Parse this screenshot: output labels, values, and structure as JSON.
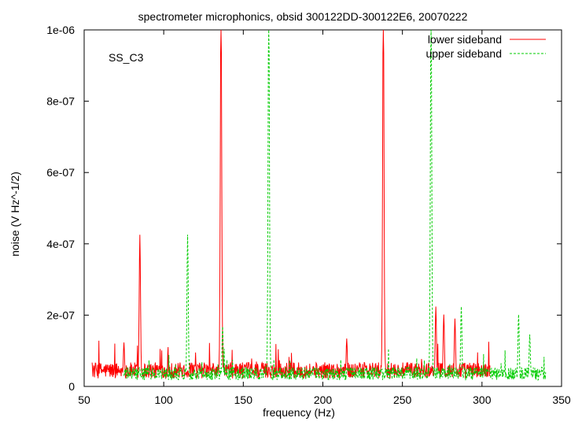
{
  "chart_data": {
    "type": "line",
    "title": "spectrometer microphonics, obsid 300122DD-300122E6, 20070222",
    "annotation": "SS_C3",
    "xlabel": "frequency (Hz)",
    "ylabel": "noise (V Hz^-1/2)",
    "xlim": [
      50,
      350
    ],
    "ylim": [
      0,
      1e-06
    ],
    "x_ticks": [
      50,
      100,
      150,
      200,
      250,
      300,
      350
    ],
    "x_tick_labels": [
      "50",
      "100",
      "150",
      "200",
      "250",
      "300",
      "350"
    ],
    "y_ticks": [
      0,
      2e-07,
      4e-07,
      6e-07,
      8e-07,
      1e-06
    ],
    "y_tick_labels": [
      "0",
      "2e-07",
      "4e-07",
      "6e-07",
      "8e-07",
      "1e-06"
    ],
    "grid": false,
    "legend_position": "top-right",
    "series": [
      {
        "name": "lower sideband",
        "color": "#ff0000",
        "style": "solid",
        "x_range": [
          55,
          305
        ],
        "baseline": 5e-08,
        "peaks": [
          {
            "x": 75,
            "y": 1.1e-07
          },
          {
            "x": 85,
            "y": 3.8e-07
          },
          {
            "x": 136,
            "y": 1e-06
          },
          {
            "x": 215,
            "y": 1.2e-07
          },
          {
            "x": 238,
            "y": 1e-06
          },
          {
            "x": 271,
            "y": 2e-07
          },
          {
            "x": 276,
            "y": 1.8e-07
          },
          {
            "x": 283,
            "y": 1.7e-07
          }
        ]
      },
      {
        "name": "upper sideband",
        "color": "#00cc00",
        "style": "dashed",
        "x_range": [
          75,
          340
        ],
        "baseline": 4e-08,
        "peaks": [
          {
            "x": 115,
            "y": 3.8e-07
          },
          {
            "x": 137,
            "y": 1.5e-07
          },
          {
            "x": 166,
            "y": 1e-06
          },
          {
            "x": 268,
            "y": 1e-06
          },
          {
            "x": 287,
            "y": 2e-07
          },
          {
            "x": 323,
            "y": 1.8e-07
          },
          {
            "x": 330,
            "y": 1.3e-07
          }
        ]
      }
    ]
  }
}
